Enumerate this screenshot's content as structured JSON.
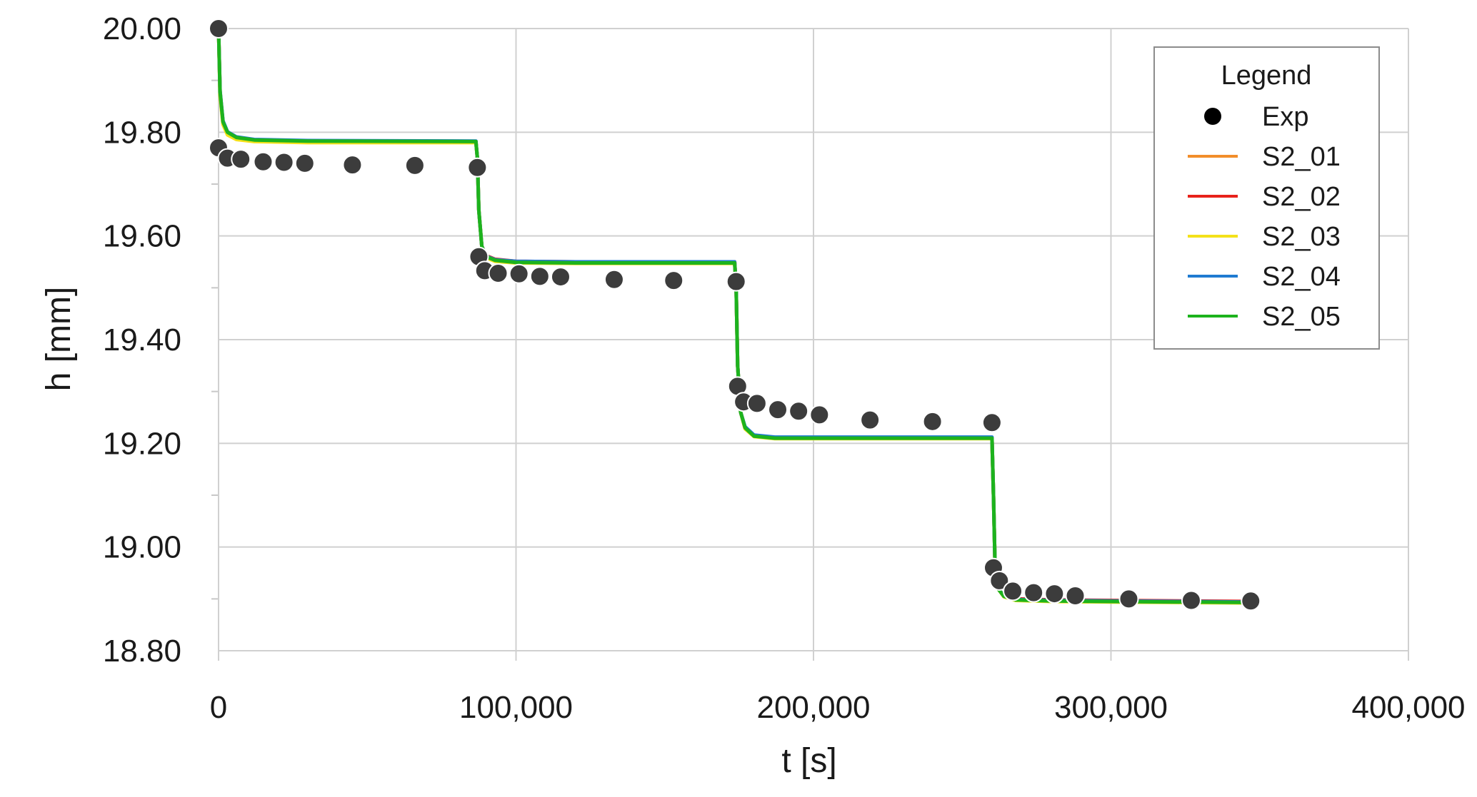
{
  "chart_data": {
    "type": "line",
    "title": "",
    "xlabel": "t [s]",
    "ylabel": "h [mm]",
    "xlim": [
      0,
      400000
    ],
    "ylim": [
      18.8,
      20.0
    ],
    "x_ticks": [
      0,
      100000,
      200000,
      300000,
      400000
    ],
    "x_tick_labels": [
      "0",
      "100,000",
      "200,000",
      "300,000",
      "400,000"
    ],
    "y_ticks": [
      18.8,
      19.0,
      19.2,
      19.4,
      19.6,
      19.8,
      20.0
    ],
    "y_tick_labels": [
      "18.80",
      "19.00",
      "19.20",
      "19.40",
      "19.60",
      "19.80",
      "20.00"
    ],
    "grid": true,
    "legend": {
      "title": "Legend",
      "placement": "top-right",
      "entries": [
        {
          "label": "Exp",
          "kind": "marker",
          "color": "#000000"
        },
        {
          "label": "S2_01",
          "kind": "line",
          "color": "#f28e2b"
        },
        {
          "label": "S2_02",
          "kind": "line",
          "color": "#e8221b"
        },
        {
          "label": "S2_03",
          "kind": "line",
          "color": "#f4e11a"
        },
        {
          "label": "S2_04",
          "kind": "line",
          "color": "#1f7bd1"
        },
        {
          "label": "S2_05",
          "kind": "line",
          "color": "#1db31d"
        }
      ]
    },
    "scatter_series": {
      "name": "Exp",
      "color": "#3c3c3c",
      "points": [
        [
          0,
          20.0
        ],
        [
          0,
          19.77
        ],
        [
          3000,
          19.75
        ],
        [
          7500,
          19.748
        ],
        [
          15000,
          19.743
        ],
        [
          22000,
          19.742
        ],
        [
          29000,
          19.74
        ],
        [
          45000,
          19.737
        ],
        [
          66000,
          19.736
        ],
        [
          87000,
          19.732
        ],
        [
          87500,
          19.56
        ],
        [
          89500,
          19.533
        ],
        [
          94000,
          19.528
        ],
        [
          101000,
          19.527
        ],
        [
          108000,
          19.522
        ],
        [
          115000,
          19.521
        ],
        [
          133000,
          19.516
        ],
        [
          153000,
          19.514
        ],
        [
          174000,
          19.512
        ],
        [
          174500,
          19.31
        ],
        [
          176500,
          19.28
        ],
        [
          181000,
          19.277
        ],
        [
          188000,
          19.265
        ],
        [
          195000,
          19.262
        ],
        [
          202000,
          19.255
        ],
        [
          219000,
          19.245
        ],
        [
          240000,
          19.242
        ],
        [
          260000,
          19.24
        ],
        [
          260500,
          18.96
        ],
        [
          262500,
          18.935
        ],
        [
          267000,
          18.915
        ],
        [
          274000,
          18.912
        ],
        [
          281000,
          18.91
        ],
        [
          288000,
          18.906
        ],
        [
          306000,
          18.9
        ],
        [
          327000,
          18.897
        ],
        [
          347000,
          18.896
        ]
      ]
    },
    "series": [
      {
        "name": "S2_01",
        "color": "#f28e2b",
        "x": [
          0,
          500,
          1500,
          3000,
          6000,
          12000,
          30000,
          86500,
          87000,
          87500,
          88500,
          90000,
          93000,
          100000,
          120000,
          173500,
          174000,
          174500,
          175500,
          177000,
          180000,
          187000,
          210000,
          260000,
          260500,
          261000,
          262000,
          264000,
          268000,
          280000,
          300000,
          347000
        ],
        "y": [
          20.0,
          19.88,
          19.82,
          19.8,
          19.79,
          19.785,
          19.783,
          19.782,
          19.75,
          19.65,
          19.58,
          19.56,
          19.553,
          19.55,
          19.549,
          19.549,
          19.5,
          19.35,
          19.26,
          19.23,
          19.215,
          19.21,
          19.21,
          19.21,
          19.1,
          18.97,
          18.92,
          18.905,
          18.898,
          18.896,
          18.895,
          18.893
        ]
      },
      {
        "name": "S2_02",
        "color": "#e8221b",
        "x": [
          0,
          500,
          1500,
          3000,
          6000,
          12000,
          30000,
          86500,
          87000,
          87500,
          88500,
          90000,
          93000,
          100000,
          120000,
          173500,
          174000,
          174500,
          175500,
          177000,
          180000,
          187000,
          210000,
          260000,
          260500,
          261000,
          262000,
          264000,
          268000,
          280000,
          300000,
          347000
        ],
        "y": [
          20.0,
          19.875,
          19.818,
          19.798,
          19.788,
          19.784,
          19.782,
          19.782,
          19.75,
          19.65,
          19.58,
          19.562,
          19.555,
          19.551,
          19.55,
          19.55,
          19.5,
          19.35,
          19.26,
          19.229,
          19.214,
          19.211,
          19.21,
          19.21,
          19.1,
          18.97,
          18.92,
          18.906,
          18.9,
          18.898,
          18.897,
          18.895
        ]
      },
      {
        "name": "S2_03",
        "color": "#f4e11a",
        "x": [
          0,
          500,
          1500,
          3000,
          6000,
          12000,
          30000,
          86500,
          87000,
          87500,
          88500,
          90000,
          93000,
          100000,
          120000,
          173500,
          174000,
          174500,
          175500,
          177000,
          180000,
          187000,
          210000,
          260000,
          260500,
          261000,
          262000,
          264000,
          268000,
          280000,
          300000,
          347000
        ],
        "y": [
          20.0,
          19.87,
          19.815,
          19.795,
          19.786,
          19.782,
          19.78,
          19.78,
          19.75,
          19.65,
          19.58,
          19.558,
          19.551,
          19.548,
          19.547,
          19.547,
          19.5,
          19.35,
          19.26,
          19.228,
          19.213,
          19.209,
          19.209,
          19.209,
          19.1,
          18.97,
          18.92,
          18.904,
          18.897,
          18.895,
          18.894,
          18.892
        ]
      },
      {
        "name": "S2_04",
        "color": "#1f7bd1",
        "x": [
          0,
          500,
          1500,
          3000,
          6000,
          12000,
          30000,
          86500,
          87000,
          87500,
          88500,
          90000,
          93000,
          100000,
          120000,
          173500,
          174000,
          174500,
          175500,
          177000,
          180000,
          187000,
          210000,
          260000,
          260500,
          261000,
          262000,
          264000,
          268000,
          280000,
          300000,
          347000
        ],
        "y": [
          20.0,
          19.88,
          19.822,
          19.801,
          19.791,
          19.786,
          19.784,
          19.783,
          19.75,
          19.65,
          19.58,
          19.561,
          19.554,
          19.551,
          19.55,
          19.55,
          19.5,
          19.35,
          19.26,
          19.232,
          19.216,
          19.212,
          19.212,
          19.212,
          19.1,
          18.97,
          18.92,
          18.906,
          18.899,
          18.897,
          18.896,
          18.894
        ]
      },
      {
        "name": "S2_05",
        "color": "#1db31d",
        "x": [
          0,
          500,
          1500,
          3000,
          6000,
          12000,
          30000,
          86500,
          87000,
          87500,
          88500,
          90000,
          93000,
          100000,
          120000,
          173500,
          174000,
          174500,
          175500,
          177000,
          180000,
          187000,
          210000,
          260000,
          260500,
          261000,
          262000,
          264000,
          268000,
          280000,
          300000,
          347000
        ],
        "y": [
          20.0,
          19.878,
          19.82,
          19.8,
          19.79,
          19.785,
          19.783,
          19.782,
          19.75,
          19.65,
          19.58,
          19.56,
          19.553,
          19.549,
          19.548,
          19.548,
          19.5,
          19.35,
          19.26,
          19.23,
          19.214,
          19.21,
          19.21,
          19.21,
          19.1,
          18.97,
          18.92,
          18.905,
          18.898,
          18.896,
          18.895,
          18.893
        ]
      }
    ]
  }
}
